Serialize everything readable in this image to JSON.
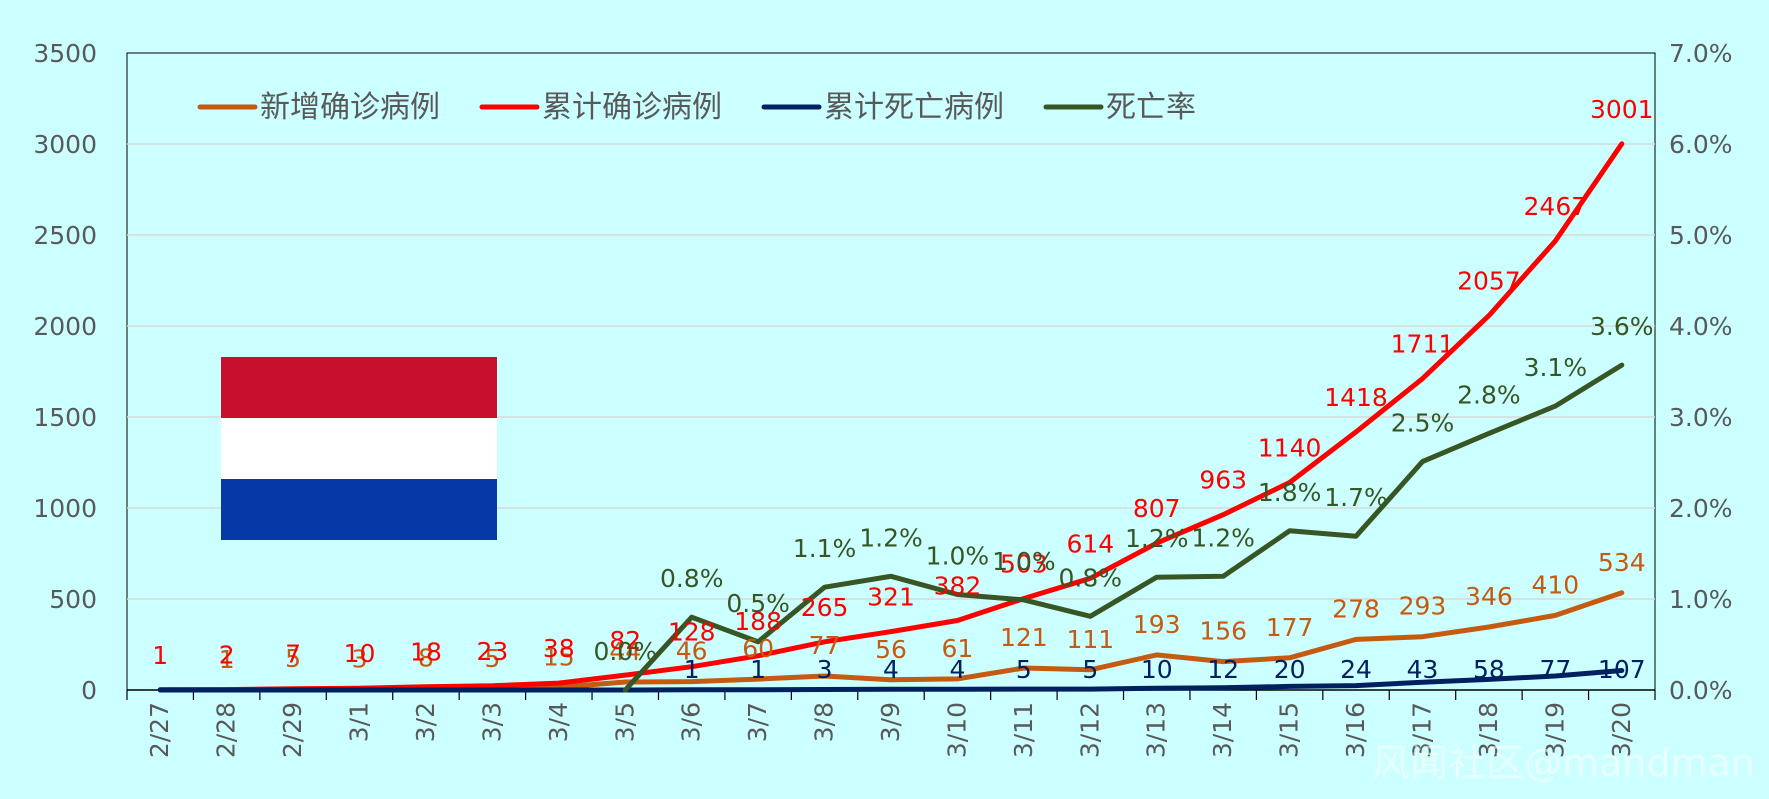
{
  "chart_data": {
    "type": "line",
    "categories": [
      "2/27",
      "2/28",
      "2/29",
      "3/1",
      "3/2",
      "3/3",
      "3/4",
      "3/5",
      "3/6",
      "3/7",
      "3/8",
      "3/9",
      "3/10",
      "3/11",
      "3/12",
      "3/13",
      "3/14",
      "3/15",
      "3/16",
      "3/17",
      "3/18",
      "3/19",
      "3/20"
    ],
    "ylim": [
      0,
      3500
    ],
    "y_ticks": [
      "0",
      "500",
      "1000",
      "1500",
      "2000",
      "2500",
      "3000",
      "3500"
    ],
    "y2lim": [
      0,
      7.0
    ],
    "y2_ticks": [
      "0.0%",
      "1.0%",
      "2.0%",
      "3.0%",
      "4.0%",
      "5.0%",
      "6.0%",
      "7.0%"
    ],
    "grid": true,
    "legend_position": "top-left",
    "series": [
      {
        "name": "新增确诊病例",
        "axis": "left",
        "color": "#c55a11",
        "values": [
          1,
          1,
          5,
          3,
          8,
          5,
          15,
          44,
          46,
          60,
          77,
          56,
          61,
          121,
          111,
          193,
          156,
          177,
          278,
          293,
          346,
          410,
          534
        ],
        "labels": [
          "",
          "1",
          "5",
          "3",
          "8",
          "5",
          "15",
          "44",
          "46",
          "60",
          "77",
          "56",
          "61",
          "121",
          "111",
          "193",
          "156",
          "177",
          "278",
          "293",
          "346",
          "410",
          "534"
        ]
      },
      {
        "name": "累计确诊病例",
        "axis": "left",
        "color": "#ff0000",
        "values": [
          1,
          2,
          7,
          10,
          18,
          23,
          38,
          82,
          128,
          188,
          265,
          321,
          382,
          503,
          614,
          807,
          963,
          1140,
          1418,
          1711,
          2057,
          2467,
          3001
        ],
        "labels": [
          "1",
          "2",
          "7",
          "10",
          "18",
          "23",
          "38",
          "82",
          "128",
          "188",
          "265",
          "321",
          "382",
          "503",
          "614",
          "807",
          "963",
          "1140",
          "1418",
          "1711",
          "2057",
          "2467",
          "3001"
        ]
      },
      {
        "name": "累计死亡病例",
        "axis": "left",
        "color": "#002060",
        "values": [
          0,
          0,
          0,
          0,
          0,
          0,
          0,
          0,
          1,
          1,
          3,
          4,
          4,
          5,
          5,
          10,
          12,
          20,
          24,
          43,
          58,
          77,
          107
        ],
        "labels": [
          "",
          "",
          "",
          "",
          "",
          "",
          "",
          "",
          "1",
          "1",
          "3",
          "4",
          "4",
          "5",
          "5",
          "10",
          "12",
          "20",
          "24",
          "43",
          "58",
          "77",
          "107"
        ]
      },
      {
        "name": "死亡率",
        "axis": "right",
        "color": "#375623",
        "values": [
          null,
          null,
          null,
          null,
          null,
          null,
          null,
          0.0,
          0.8,
          0.53,
          1.13,
          1.25,
          1.05,
          0.99,
          0.81,
          1.24,
          1.25,
          1.75,
          1.69,
          2.51,
          2.82,
          3.12,
          3.57
        ],
        "labels": [
          "",
          "",
          "",
          "",
          "",
          "",
          "",
          "0.0%",
          "0.8%",
          "0.5%",
          "1.1%",
          "1.2%",
          "1.0%",
          "1.0%",
          "0.8%",
          "1.2%",
          "1.2%",
          "1.8%",
          "1.7%",
          "2.5%",
          "2.8%",
          "3.1%",
          "3.6%"
        ]
      }
    ],
    "flag": {
      "stripes": [
        "#c8102e",
        "#ffffff",
        "#0638a7"
      ]
    },
    "watermark": "风闻社区@mandman"
  }
}
